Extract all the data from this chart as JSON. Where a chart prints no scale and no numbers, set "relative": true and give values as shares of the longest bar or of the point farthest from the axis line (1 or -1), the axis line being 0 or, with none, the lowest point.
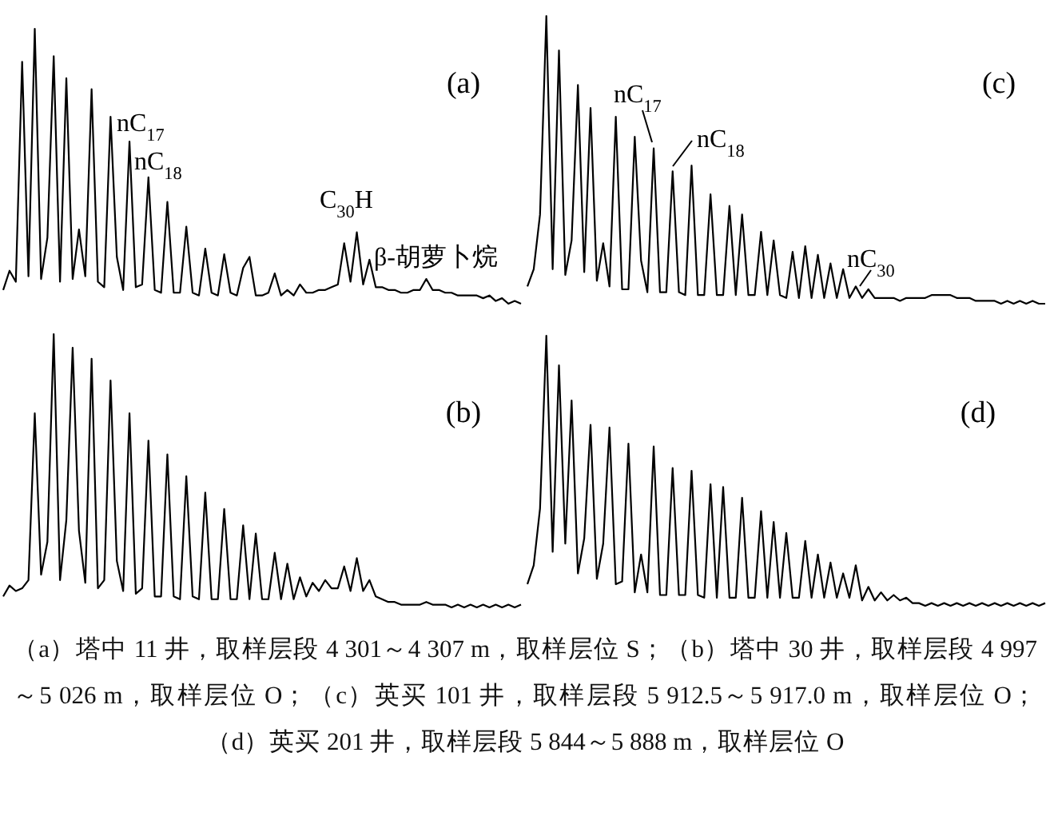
{
  "chart_data": [
    {
      "type": "line",
      "relative": true,
      "tick_labels": false,
      "title": "(a)",
      "annotations": [
        "nC$_{17}$",
        "nC$_{18}$",
        "C$_{30}$H",
        "β-胡萝卜烷"
      ],
      "series": [
        {
          "color": "#000000",
          "values": [
            0.05,
            0.12,
            0.08,
            0.88,
            0.1,
            1.0,
            0.09,
            0.24,
            0.9,
            0.08,
            0.82,
            0.09,
            0.27,
            0.1,
            0.78,
            0.08,
            0.06,
            0.68,
            0.17,
            0.05,
            0.59,
            0.06,
            0.07,
            0.46,
            0.05,
            0.04,
            0.37,
            0.04,
            0.04,
            0.28,
            0.04,
            0.03,
            0.2,
            0.04,
            0.03,
            0.18,
            0.04,
            0.03,
            0.13,
            0.17,
            0.03,
            0.03,
            0.04,
            0.11,
            0.03,
            0.05,
            0.03,
            0.07,
            0.04,
            0.04,
            0.05,
            0.05,
            0.06,
            0.07,
            0.22,
            0.08,
            0.26,
            0.07,
            0.16,
            0.06,
            0.06,
            0.05,
            0.05,
            0.04,
            0.04,
            0.05,
            0.05,
            0.09,
            0.05,
            0.05,
            0.04,
            0.04,
            0.03,
            0.03,
            0.03,
            0.03,
            0.02,
            0.03,
            0.01,
            0.02,
            0.0,
            0.01,
            0.0
          ]
        }
      ],
      "categories": [
        null,
        null,
        null,
        null,
        null,
        null,
        null,
        null,
        null,
        null,
        null,
        null,
        null,
        null,
        null,
        null,
        null,
        null,
        null,
        null,
        null,
        null,
        null,
        null,
        null,
        null,
        null,
        null,
        null,
        null,
        null,
        null,
        null,
        null,
        null,
        null,
        null,
        null,
        null,
        null,
        null,
        null,
        null,
        null,
        null,
        null,
        null,
        null,
        null,
        null,
        null,
        null,
        null,
        null,
        null,
        null,
        null,
        null,
        null,
        null,
        null,
        null,
        null,
        null,
        null,
        null,
        null,
        null,
        null,
        null,
        null,
        null,
        null,
        null,
        null,
        null,
        null,
        null,
        null,
        null,
        null,
        null,
        null
      ]
    },
    {
      "type": "line",
      "relative": true,
      "tick_labels": false,
      "title": "(c)",
      "annotations": [
        "nC$_{17}$",
        "nC$_{18}$",
        "nC$_{30}$"
      ],
      "series": [
        {
          "color": "#000000",
          "values": [
            0.06,
            0.12,
            0.31,
            1.0,
            0.12,
            0.88,
            0.1,
            0.22,
            0.76,
            0.11,
            0.68,
            0.08,
            0.21,
            0.06,
            0.65,
            0.05,
            0.05,
            0.58,
            0.15,
            0.04,
            0.54,
            0.04,
            0.04,
            0.46,
            0.04,
            0.03,
            0.48,
            0.03,
            0.03,
            0.38,
            0.03,
            0.03,
            0.34,
            0.03,
            0.31,
            0.03,
            0.03,
            0.25,
            0.03,
            0.22,
            0.03,
            0.02,
            0.18,
            0.02,
            0.2,
            0.02,
            0.17,
            0.02,
            0.14,
            0.02,
            0.12,
            0.02,
            0.06,
            0.02,
            0.05,
            0.02,
            0.02,
            0.02,
            0.02,
            0.01,
            0.02,
            0.02,
            0.02,
            0.02,
            0.03,
            0.03,
            0.03,
            0.03,
            0.02,
            0.02,
            0.02,
            0.01,
            0.01,
            0.01,
            0.01,
            0.0,
            0.01,
            0.0,
            0.01,
            0.0,
            0.01,
            0.0,
            0.0
          ]
        }
      ],
      "categories": [
        null,
        null,
        null,
        null,
        null,
        null,
        null,
        null,
        null,
        null,
        null,
        null,
        null,
        null,
        null,
        null,
        null,
        null,
        null,
        null,
        null,
        null,
        null,
        null,
        null,
        null,
        null,
        null,
        null,
        null,
        null,
        null,
        null,
        null,
        null,
        null,
        null,
        null,
        null,
        null,
        null,
        null,
        null,
        null,
        null,
        null,
        null,
        null,
        null,
        null,
        null,
        null,
        null,
        null,
        null,
        null,
        null,
        null,
        null,
        null,
        null,
        null,
        null,
        null,
        null,
        null,
        null,
        null,
        null,
        null,
        null,
        null,
        null,
        null,
        null,
        null,
        null,
        null,
        null,
        null,
        null,
        null,
        null
      ]
    },
    {
      "type": "line",
      "relative": true,
      "tick_labels": false,
      "title": "(b)",
      "series": [
        {
          "color": "#000000",
          "values": [
            0.04,
            0.08,
            0.06,
            0.07,
            0.1,
            0.71,
            0.12,
            0.24,
            1.0,
            0.1,
            0.32,
            0.95,
            0.28,
            0.09,
            0.91,
            0.07,
            0.1,
            0.83,
            0.17,
            0.06,
            0.71,
            0.05,
            0.07,
            0.61,
            0.04,
            0.04,
            0.56,
            0.04,
            0.03,
            0.48,
            0.04,
            0.03,
            0.42,
            0.03,
            0.03,
            0.36,
            0.03,
            0.03,
            0.3,
            0.03,
            0.27,
            0.03,
            0.03,
            0.2,
            0.03,
            0.16,
            0.03,
            0.11,
            0.04,
            0.09,
            0.06,
            0.1,
            0.07,
            0.07,
            0.15,
            0.06,
            0.18,
            0.06,
            0.1,
            0.04,
            0.03,
            0.02,
            0.02,
            0.01,
            0.01,
            0.01,
            0.01,
            0.02,
            0.01,
            0.01,
            0.01,
            0.0,
            0.01,
            0.0,
            0.01,
            0.0,
            0.01,
            0.0,
            0.01,
            0.0,
            0.01,
            0.0,
            0.01
          ]
        }
      ],
      "categories": [
        null,
        null,
        null,
        null,
        null,
        null,
        null,
        null,
        null,
        null,
        null,
        null,
        null,
        null,
        null,
        null,
        null,
        null,
        null,
        null,
        null,
        null,
        null,
        null,
        null,
        null,
        null,
        null,
        null,
        null,
        null,
        null,
        null,
        null,
        null,
        null,
        null,
        null,
        null,
        null,
        null,
        null,
        null,
        null,
        null,
        null,
        null,
        null,
        null,
        null,
        null,
        null,
        null,
        null,
        null,
        null,
        null,
        null,
        null,
        null,
        null,
        null,
        null,
        null,
        null,
        null,
        null,
        null,
        null,
        null,
        null,
        null,
        null,
        null,
        null,
        null,
        null,
        null,
        null,
        null,
        null,
        null,
        null
      ]
    },
    {
      "type": "line",
      "relative": true,
      "tick_labels": false,
      "title": "(d)",
      "annotations": [
        "（a）塔中 11 井，取样层段 4 301～4 307 m，取样层位 S；（b）塔中 30 井，取样层段 4 997～5 026 m，取样层位 O；（c）英买 101 井，取样层段 5 912.5～5 917.0 m，取样层位 O；（d）英买 201 井，取样层段 5 844～5 888 m，取样层位 O"
      ],
      "series": [
        {
          "color": "#000000",
          "values": [
            0.08,
            0.15,
            0.36,
            1.0,
            0.2,
            0.89,
            0.23,
            0.76,
            0.12,
            0.25,
            0.67,
            0.1,
            0.23,
            0.66,
            0.08,
            0.09,
            0.6,
            0.05,
            0.19,
            0.05,
            0.59,
            0.04,
            0.04,
            0.51,
            0.04,
            0.04,
            0.5,
            0.04,
            0.03,
            0.45,
            0.03,
            0.44,
            0.03,
            0.03,
            0.4,
            0.03,
            0.03,
            0.35,
            0.03,
            0.31,
            0.03,
            0.27,
            0.03,
            0.03,
            0.24,
            0.03,
            0.19,
            0.03,
            0.16,
            0.03,
            0.12,
            0.03,
            0.15,
            0.02,
            0.07,
            0.02,
            0.05,
            0.02,
            0.04,
            0.02,
            0.03,
            0.01,
            0.01,
            0.0,
            0.01,
            0.0,
            0.01,
            0.0,
            0.01,
            0.0,
            0.01,
            0.0,
            0.01,
            0.0,
            0.01,
            0.0,
            0.01,
            0.0,
            0.01,
            0.0,
            0.01,
            0.0,
            0.01
          ]
        }
      ],
      "categories": [
        null,
        null,
        null,
        null,
        null,
        null,
        null,
        null,
        null,
        null,
        null,
        null,
        null,
        null,
        null,
        null,
        null,
        null,
        null,
        null,
        null,
        null,
        null,
        null,
        null,
        null,
        null,
        null,
        null,
        null,
        null,
        null,
        null,
        null,
        null,
        null,
        null,
        null,
        null,
        null,
        null,
        null,
        null,
        null,
        null,
        null,
        null,
        null,
        null,
        null,
        null,
        null,
        null,
        null,
        null,
        null,
        null,
        null,
        null,
        null,
        null,
        null,
        null,
        null,
        null,
        null,
        null,
        null,
        null,
        null,
        null,
        null,
        null,
        null,
        null,
        null,
        null,
        null,
        null,
        null,
        null,
        null,
        null
      ]
    }
  ]
}
